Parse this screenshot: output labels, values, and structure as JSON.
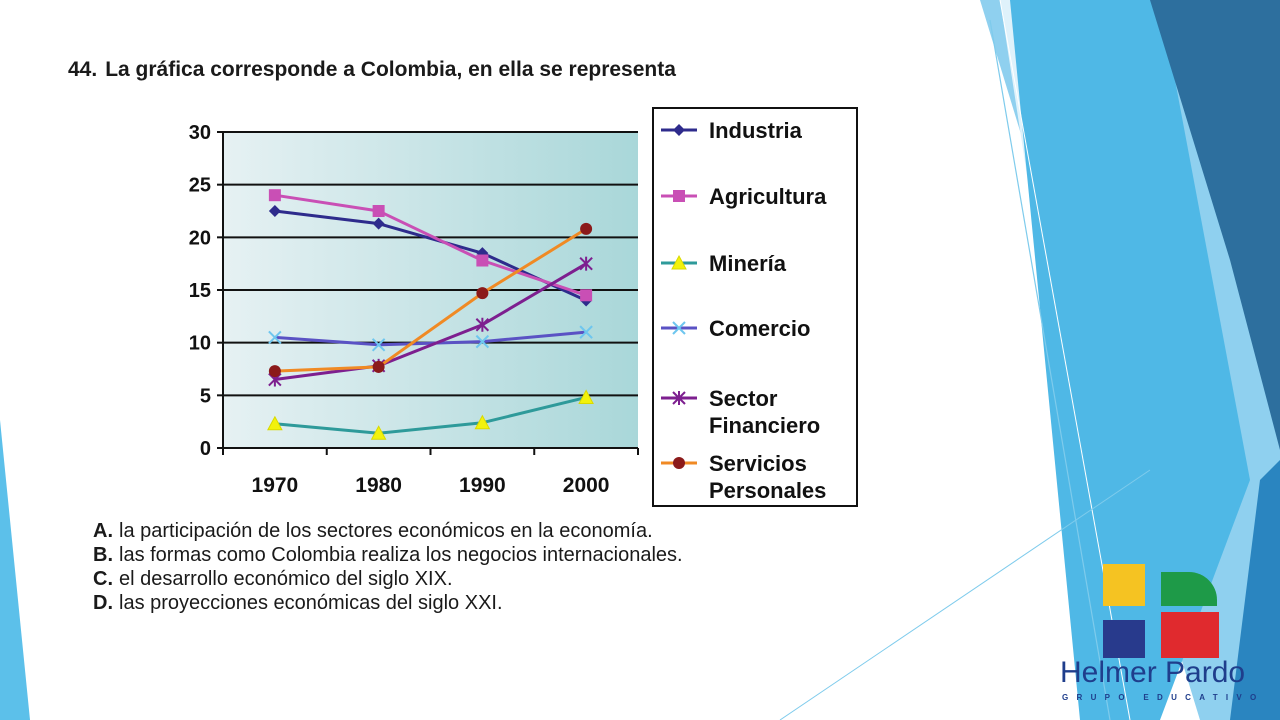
{
  "question": {
    "number": "44.",
    "text": "La  gráfica corresponde a Colombia, en ella se representa"
  },
  "options": [
    {
      "key": "A.",
      "text": "la participación de los sectores económicos en la economía."
    },
    {
      "key": "B.",
      "text": "las formas como Colombia realiza los negocios internacionales."
    },
    {
      "key": "C.",
      "text": "el desarrollo económico del siglo XIX."
    },
    {
      "key": "D.",
      "text": "las proyecciones económicas del siglo XXI."
    }
  ],
  "logo": {
    "name": "Helmer Pardo",
    "subtitle": "GRUPO EDUCATIVO",
    "colors": {
      "yellow": "#f5c322",
      "green": "#1e9a48",
      "navy": "#283a8c",
      "red": "#e02a2e"
    }
  },
  "colors": {
    "plot_bg_left": "#e6f1f3",
    "plot_bg_right": "#a9d7d9",
    "deco_dark": "#2d6f9e",
    "deco_mid": "#2aa3dc",
    "deco_light": "#8fd0ef"
  },
  "chart_data": {
    "type": "line",
    "categories": [
      "1970",
      "1980",
      "1990",
      "2000"
    ],
    "ylim": [
      0,
      30
    ],
    "yticks": [
      "0",
      "5",
      "10",
      "15",
      "20",
      "25",
      "30"
    ],
    "grid": "horizontal",
    "legend_position": "right",
    "series": [
      {
        "name": "Industria",
        "values": [
          22.5,
          21.3,
          18.5,
          14.0
        ],
        "color": "#2e2b8c",
        "marker": "diamond"
      },
      {
        "name": "Agricultura",
        "values": [
          24.0,
          22.5,
          17.8,
          14.5
        ],
        "color": "#c94fb5",
        "marker": "square"
      },
      {
        "name": "Minería",
        "values": [
          2.3,
          1.4,
          2.4,
          4.8
        ],
        "color": "#2e9a9a",
        "marker": "triangle"
      },
      {
        "name": "Comercio",
        "values": [
          10.5,
          9.8,
          10.1,
          11.0
        ],
        "color": "#5a52c4",
        "marker": "x"
      },
      {
        "name": "Sector Financiero",
        "values": [
          6.5,
          7.8,
          11.7,
          17.5
        ],
        "color": "#7d1f8f",
        "marker": "star"
      },
      {
        "name": "Servicios Personales",
        "values": [
          7.3,
          7.7,
          14.7,
          20.8
        ],
        "color": "#f08a24",
        "marker": "circle"
      }
    ]
  }
}
